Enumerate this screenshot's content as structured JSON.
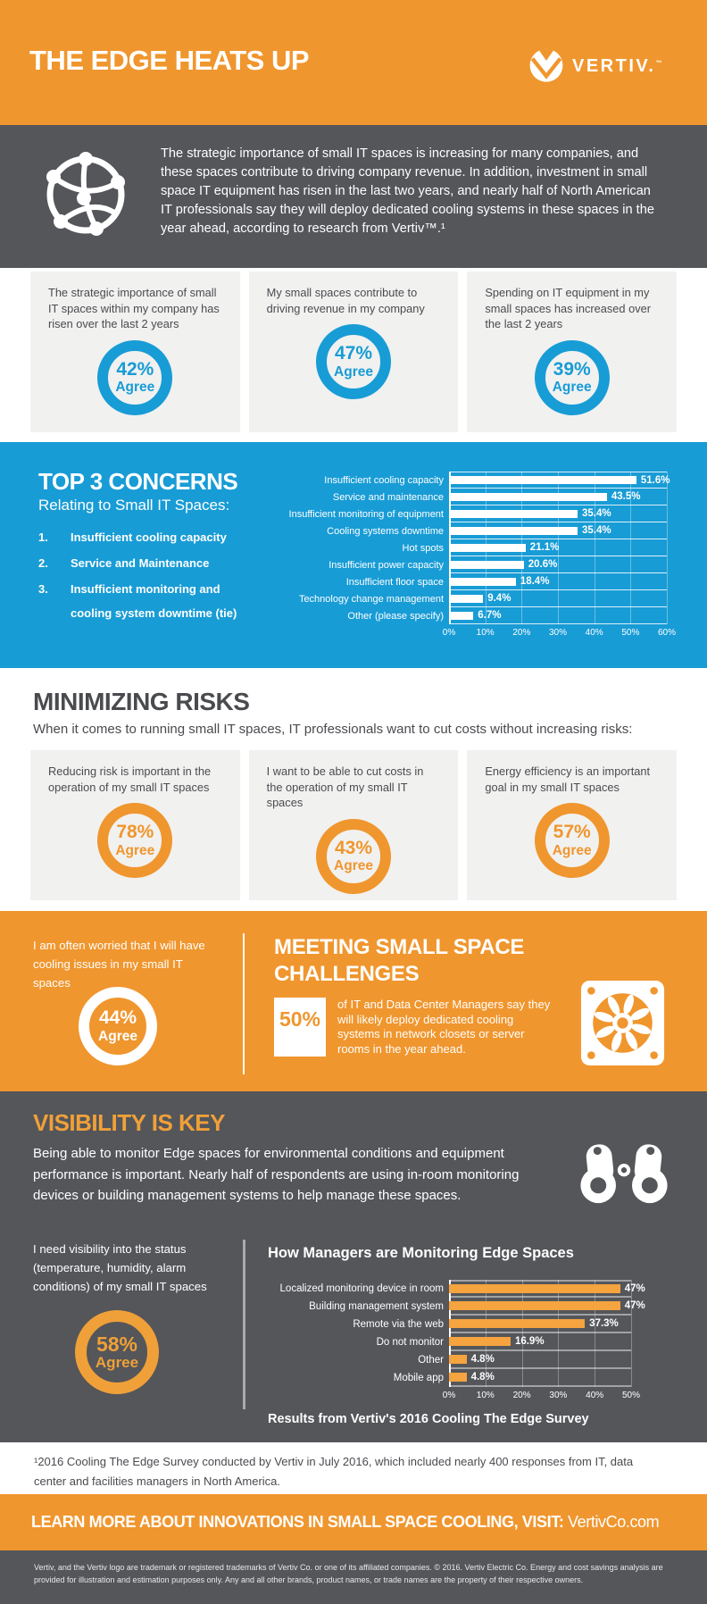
{
  "colors": {
    "orange": "#F0962E",
    "orange_bar": "#F5A43F",
    "blue": "#189CD6",
    "dark_gray": "#54565A",
    "light_box": "#F1F1F0",
    "text_dark": "#4A4B4F",
    "white": "#FFFFFF"
  },
  "icons": [
    "vertiv-logo-icon",
    "network-globe-icon",
    "fan-icon",
    "binoculars-icon"
  ],
  "header": {
    "title": "THE EDGE HEATS UP",
    "brand": "VERTIV.",
    "brand_tm": "™"
  },
  "intro": {
    "text": "The strategic importance of small IT spaces is increasing for many companies, and these spaces contribute to driving company revenue. In addition, investment in small space IT equipment has risen in the last two years, and nearly half of North American IT professionals say they will deploy dedicated cooling systems in these spaces in the year ahead, according to  research from Vertiv™.¹"
  },
  "agree_label": "Agree",
  "stats_blue": [
    {
      "statement": "The strategic importance of small IT spaces within my company has risen over the last 2 years",
      "value": "42%"
    },
    {
      "statement": "My small spaces contribute to driving revenue in my company",
      "value": "47%"
    },
    {
      "statement": "Spending on IT equipment in my small spaces has increased over the last 2 years",
      "value": "39%"
    }
  ],
  "top_concerns": {
    "title": "TOP 3 CONCERNS",
    "subtitle": "Relating to Small IT Spaces:",
    "items": [
      {
        "num": "1.",
        "text": "Insufficient cooling capacity"
      },
      {
        "num": "2.",
        "text": "Service and Maintenance"
      },
      {
        "num": "3.",
        "text": "Insufficient monitoring and cooling system downtime (tie)"
      }
    ]
  },
  "minimizing_risks": {
    "title": "MINIMIZING RISKS",
    "subtitle": "When it comes to running small IT spaces, IT professionals want to cut costs without increasing risks:"
  },
  "stats_orange": [
    {
      "statement": "Reducing risk is important in the operation of my small IT spaces",
      "value": "78%"
    },
    {
      "statement": "I want to be able to cut costs in the operation of my small IT spaces",
      "value": "43%"
    },
    {
      "statement": "Energy efficiency is an important goal in my small IT spaces",
      "value": "57%"
    }
  ],
  "meeting_challenges": {
    "statement": "I am often worried that I will have cooling issues in my small IT spaces",
    "value": "44%",
    "title": "MEETING SMALL SPACE CHALLENGES",
    "big_stat": "50%",
    "big_stat_text": "of IT and Data Center Managers say they will likely deploy dedicated cooling systems in network closets or server rooms in the year ahead."
  },
  "visibility": {
    "title": "VISIBILITY IS KEY",
    "text": "Being able to monitor Edge spaces for environmental conditions and equipment performance is important. Nearly half of respondents are using in-room monitoring devices or building management systems to help manage these spaces.",
    "statement": "I need visibility into the status (temperature, humidity, alarm conditions) of my small IT spaces",
    "value": "58%",
    "chart_title": "How Managers are Monitoring Edge Spaces",
    "caption": "Results from Vertiv's 2016 Cooling The Edge Survey"
  },
  "chart_data": [
    {
      "type": "bar",
      "orientation": "horizontal",
      "title": "",
      "legend": false,
      "grid": true,
      "categories": [
        "Insufficient cooling capacity",
        "Service and maintenance",
        "Insufficient monitoring of equipment",
        "Cooling systems downtime",
        "Hot spots",
        "Insufficient power capacity",
        "Insufficient floor space",
        "Technology change management",
        "Other (please specify)"
      ],
      "values": [
        51.6,
        43.5,
        35.4,
        35.4,
        21.1,
        20.6,
        18.4,
        9.4,
        6.7
      ],
      "value_labels": [
        "51.6%",
        "43.5%",
        "35.4%",
        "35.4%",
        "21.1%",
        "20.6%",
        "18.4%",
        "9.4%",
        "6.7%"
      ],
      "xticks": [
        "0%",
        "10%",
        "20%",
        "30%",
        "40%",
        "50%",
        "60%"
      ],
      "xlim": [
        0,
        60
      ],
      "ylabel": "",
      "xlabel": ""
    },
    {
      "type": "bar",
      "orientation": "horizontal",
      "title": "How Managers are Monitoring Edge Spaces",
      "legend": false,
      "grid": true,
      "categories": [
        "Localized monitoring device in room",
        "Building management system",
        "Remote via the web",
        "Do not monitor",
        "Other",
        "Mobile app"
      ],
      "values": [
        47,
        47,
        37.3,
        16.9,
        4.8,
        4.8
      ],
      "value_labels": [
        "47%",
        "47%",
        "37.3%",
        "16.9%",
        "4.8%",
        "4.8%"
      ],
      "xticks": [
        "0%",
        "10%",
        "20%",
        "30%",
        "40%",
        "50%"
      ],
      "xlim": [
        0,
        50
      ],
      "ylabel": "",
      "xlabel": ""
    }
  ],
  "footnote": "¹2016 Cooling The Edge Survey conducted by Vertiv in July 2016, which included nearly 400 responses from IT, data center and facilities managers in North America.",
  "cta": {
    "bold": "LEARN MORE ABOUT INNOVATIONS IN SMALL SPACE COOLING, VISIT:",
    "link": "VertivCo.com"
  },
  "disclaimer": "Vertiv, and the Vertiv logo are trademark or registered trademarks of Vertiv Co. or one of its affiliated companies. © 2016. Vertiv Electric Co. Energy and cost savings analysis are provided for illustration and estimation purposes only.  Any and all other brands, product names, or trade names are the property of their respective owners."
}
